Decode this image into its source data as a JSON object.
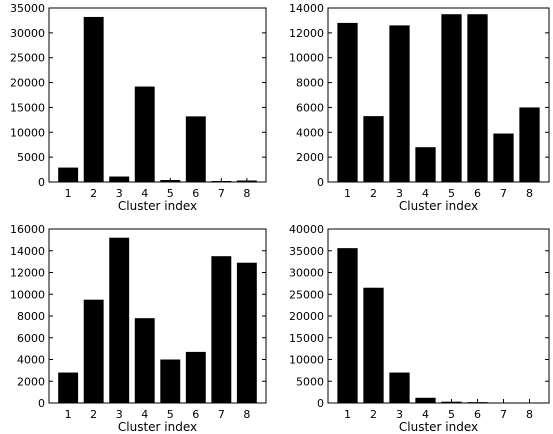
{
  "chart_data": [
    {
      "type": "bar",
      "categories": [
        "1",
        "2",
        "3",
        "4",
        "5",
        "6",
        "7",
        "8"
      ],
      "values": [
        2900,
        33200,
        1100,
        19200,
        400,
        13200,
        200,
        300
      ],
      "xlabel": "Cluster index",
      "ylabel": "",
      "ylim": [
        0,
        35000
      ],
      "yticks": [
        "0",
        "5000",
        "10000",
        "15000",
        "20000",
        "25000",
        "30000",
        "35000"
      ],
      "ytick_values": [
        0,
        5000,
        10000,
        15000,
        20000,
        25000,
        30000,
        35000
      ],
      "grid": false,
      "bar_color": "#000000"
    },
    {
      "type": "bar",
      "categories": [
        "1",
        "2",
        "3",
        "4",
        "5",
        "6",
        "7",
        "8"
      ],
      "values": [
        12800,
        5300,
        12600,
        2800,
        13500,
        13500,
        3900,
        6000
      ],
      "xlabel": "Cluster index",
      "ylabel": "",
      "ylim": [
        0,
        14000
      ],
      "yticks": [
        "0",
        "2000",
        "4000",
        "6000",
        "8000",
        "10000",
        "12000",
        "14000"
      ],
      "ytick_values": [
        0,
        2000,
        4000,
        6000,
        8000,
        10000,
        12000,
        14000
      ],
      "grid": false,
      "bar_color": "#000000"
    },
    {
      "type": "bar",
      "categories": [
        "1",
        "2",
        "3",
        "4",
        "5",
        "6",
        "7",
        "8"
      ],
      "values": [
        2800,
        9500,
        15200,
        7800,
        4000,
        4700,
        13500,
        12900
      ],
      "xlabel": "Cluster index",
      "ylabel": "",
      "ylim": [
        0,
        16000
      ],
      "yticks": [
        "0",
        "2000",
        "4000",
        "6000",
        "8000",
        "10000",
        "12000",
        "14000",
        "16000"
      ],
      "ytick_values": [
        0,
        2000,
        4000,
        6000,
        8000,
        10000,
        12000,
        14000,
        16000
      ],
      "grid": false,
      "bar_color": "#000000"
    },
    {
      "type": "bar",
      "categories": [
        "1",
        "2",
        "3",
        "4",
        "5",
        "6",
        "7",
        "8"
      ],
      "values": [
        35600,
        26500,
        7000,
        1200,
        300,
        200,
        100,
        50
      ],
      "xlabel": "Cluster index",
      "ylabel": "",
      "ylim": [
        0,
        40000
      ],
      "yticks": [
        "0",
        "5000",
        "10000",
        "15000",
        "20000",
        "25000",
        "30000",
        "35000",
        "40000"
      ],
      "ytick_values": [
        0,
        5000,
        10000,
        15000,
        20000,
        25000,
        30000,
        35000,
        40000
      ],
      "grid": false,
      "bar_color": "#000000"
    }
  ]
}
